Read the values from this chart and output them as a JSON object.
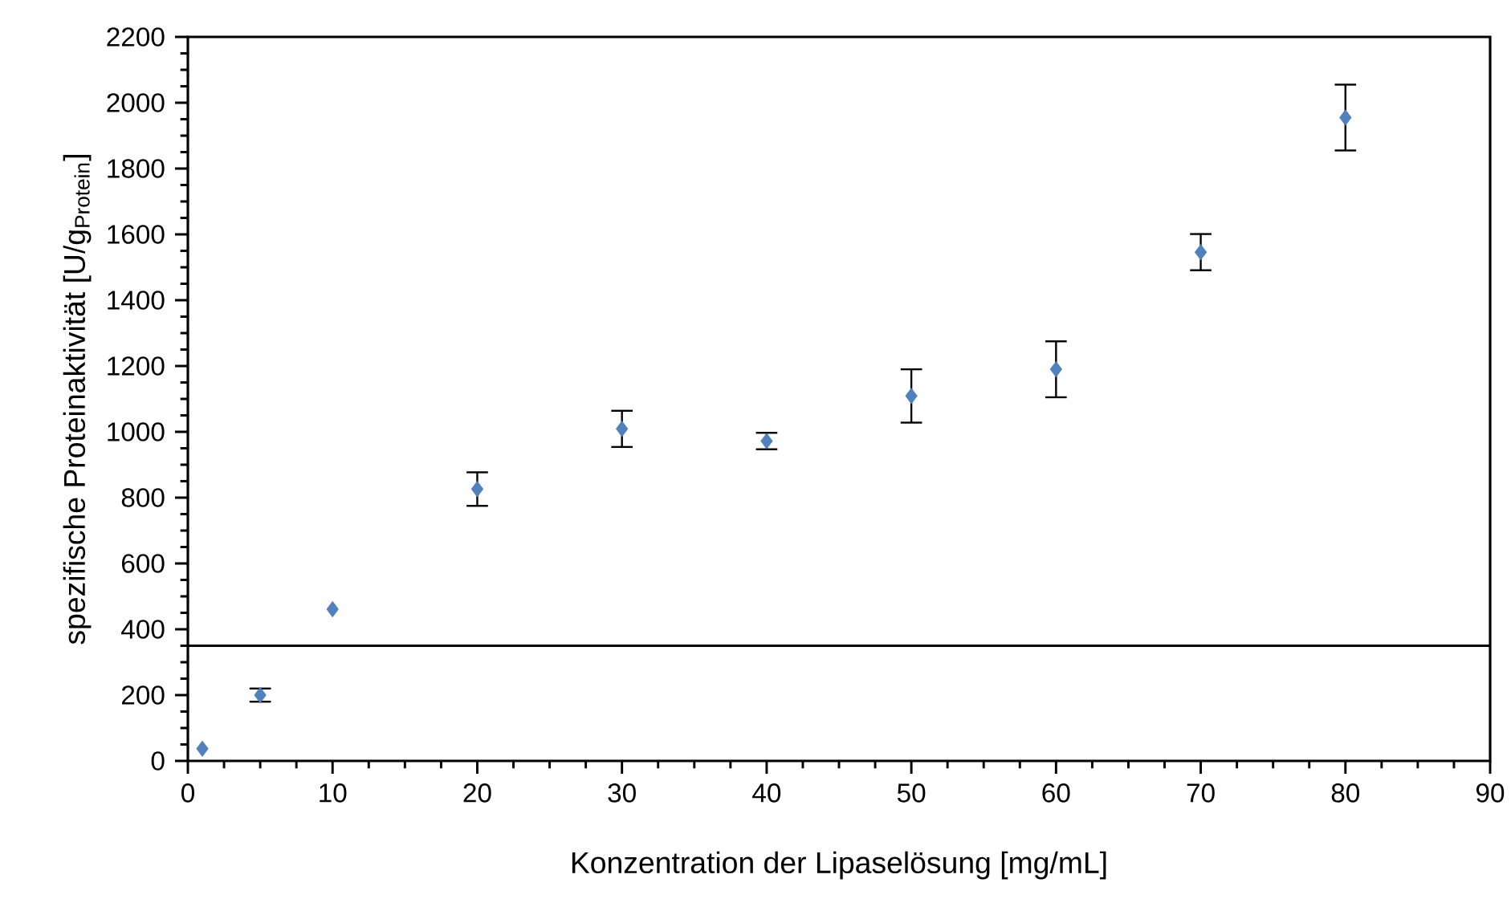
{
  "chart_data": {
    "type": "scatter",
    "xlabel": "Konzentration der Lipaselösung [mg/mL]",
    "ylabel": "spezifische Proteinaktivität [U/g$_{Protein}$]",
    "x": [
      1,
      5,
      10,
      20,
      30,
      40,
      50,
      60,
      70,
      80
    ],
    "series": [
      {
        "color": "#4f81bd",
        "values": [
          37,
          200,
          461,
          826,
          1009,
          972,
          1109,
          1190,
          1546,
          1955
        ],
        "errors": [
          null,
          20,
          null,
          51,
          55,
          25,
          81,
          85,
          55,
          100
        ]
      }
    ],
    "marker": "diamond",
    "xlim": [
      0,
      90
    ],
    "xticks": [
      0,
      10,
      20,
      30,
      40,
      50,
      60,
      70,
      80,
      90
    ],
    "ylim": [
      0,
      2200
    ],
    "yticks": [
      0,
      200,
      400,
      600,
      800,
      1000,
      1200,
      1400,
      1600,
      1800,
      2000,
      2200
    ],
    "ref_lines": [
      {
        "axis": "y",
        "value": 350,
        "color": "#000000"
      }
    ],
    "grid": false
  }
}
